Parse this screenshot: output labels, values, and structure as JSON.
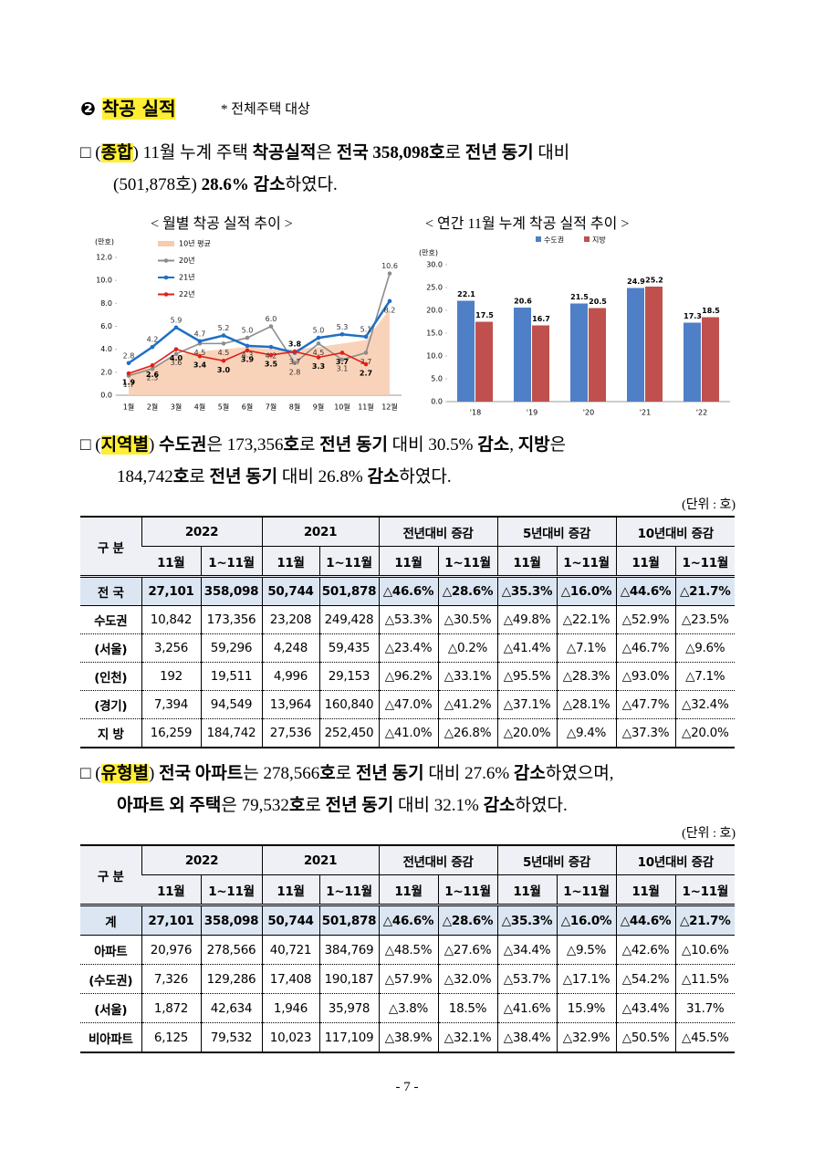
{
  "heading": {
    "number": "❷",
    "title": "착공 실적",
    "note": "* 전체주택 대상"
  },
  "paragraphs": [
    {
      "parts": [
        "□ (",
        "종합",
        ") 11월 누계 주택 ",
        "착공실적",
        "은 ",
        "전국 358,098호",
        "로 ",
        "전년 동기",
        " 대비",
        "(501,878호) ",
        "28.6% 감소",
        "하였다."
      ]
    },
    {
      "parts": [
        "□ (",
        "지역별",
        ") ",
        "수도권",
        "은 173,356",
        "호",
        "로 ",
        "전년 동기",
        " 대비 30.5% ",
        "감소",
        ", ",
        "지방",
        "은",
        "184,742",
        "호",
        "로 ",
        "전년 동기",
        " 대비 26.8% ",
        "감소",
        "하였다."
      ]
    },
    {
      "parts": [
        "□ (",
        "유형별",
        ") ",
        "전국 아파트",
        "는 278,566",
        "호",
        "로 ",
        "전년 동기",
        " 대비 27.6% ",
        "감소",
        "하였으며,",
        "아파트 외 주택",
        "은 79,532",
        "호",
        "로 ",
        "전년 동기",
        " 대비 32.1% ",
        "감소",
        "하였다."
      ]
    }
  ],
  "chart_data": [
    {
      "type": "line",
      "title": "< 월별 착공 실적 추이 >",
      "ylabel": "(만호)",
      "categories": [
        "1월",
        "2월",
        "3월",
        "4월",
        "5월",
        "6월",
        "7월",
        "8월",
        "9월",
        "10월",
        "11월",
        "12월"
      ],
      "ylim": [
        0,
        12
      ],
      "yticks": [
        {
          "value": 0,
          "label": "0.0"
        },
        {
          "value": 2,
          "label": "2.0"
        },
        {
          "value": 4,
          "label": "4.0"
        },
        {
          "value": 6,
          "label": "6.0"
        },
        {
          "value": 8,
          "label": "8.0"
        },
        {
          "value": 10,
          "label": "10.0"
        },
        {
          "value": 12,
          "label": "12.0"
        }
      ],
      "series": [
        {
          "name": "10년 평균",
          "type": "area",
          "color": "#f8cbad",
          "values": [
            2.0,
            2.5,
            3.5,
            3.8,
            4.0,
            4.2,
            4.0,
            4.0,
            4.2,
            4.5,
            4.8,
            7.5
          ]
        },
        {
          "name": "20년",
          "color": "#8c8c8c",
          "values": [
            1.7,
            2.3,
            3.6,
            4.5,
            4.5,
            5.0,
            6.0,
            2.8,
            4.5,
            3.1,
            3.7,
            10.6
          ],
          "value_labels": [
            "1.7",
            "2.3",
            "3.6",
            "4.5",
            "4.5",
            "5.0",
            "6.0",
            "2.8",
            "4.5",
            "3.1",
            "3.7",
            "10.6"
          ]
        },
        {
          "name": "21년",
          "color": "#1f6fc5",
          "values": [
            2.8,
            4.2,
            5.9,
            4.7,
            5.2,
            4.3,
            4.2,
            3.7,
            5.0,
            5.3,
            5.1,
            8.2
          ],
          "value_labels": [
            "2.8",
            "4.2",
            "5.9",
            "4.7",
            "5.2",
            "4.3",
            "4.2",
            "3.7",
            "5.0",
            "5.3",
            "5.1",
            "8.2"
          ]
        },
        {
          "name": "22년",
          "color": "#e0201b",
          "bold_labels": true,
          "values": [
            1.9,
            2.6,
            4.0,
            3.4,
            3.0,
            3.9,
            3.5,
            3.8,
            3.3,
            3.7,
            2.7,
            null
          ],
          "value_labels": [
            "1.9",
            "2.6",
            "4.0",
            "3.4",
            "3.0",
            "3.9",
            "3.5",
            "3.8",
            "3.3",
            "3.7",
            "2.7",
            null
          ]
        }
      ]
    },
    {
      "type": "bar",
      "title": "< 연간 11월 누계 착공 실적 추이 >",
      "ylabel": "(만호)",
      "categories": [
        "'18",
        "'19",
        "'20",
        "'21",
        "'22"
      ],
      "ylim": [
        0,
        30
      ],
      "yticks": [
        {
          "value": 0,
          "label": "0.0"
        },
        {
          "value": 5,
          "label": "5.0"
        },
        {
          "value": 10,
          "label": "10.0"
        },
        {
          "value": 15,
          "label": "15.0"
        },
        {
          "value": 20,
          "label": "20.0"
        },
        {
          "value": 25,
          "label": "25.0"
        },
        {
          "value": 30,
          "label": "30.0"
        }
      ],
      "series": [
        {
          "name": "수도권",
          "color": "#4f7fc6",
          "values": [
            22.1,
            20.6,
            21.5,
            24.9,
            17.3
          ]
        },
        {
          "name": "지방",
          "color": "#c0504d",
          "values": [
            17.5,
            16.7,
            20.5,
            25.2,
            18.5
          ]
        }
      ]
    }
  ],
  "tables": [
    {
      "unit": "(단위 : 호)",
      "header": [
        "구 분",
        "2022",
        "2021",
        "전년대비 증감",
        "5년대비 증감",
        "10년대비 증감"
      ],
      "subheader": [
        "11월",
        "1~11월",
        "11월",
        "1~11월",
        "11월",
        "1~11월",
        "11월",
        "1~11월",
        "11월",
        "1~11월"
      ],
      "rows": [
        [
          "전 국",
          "27,101",
          "358,098",
          "50,744",
          "501,878",
          "△46.6%",
          "△28.6%",
          "△35.3%",
          "△16.0%",
          "△44.6%",
          "△21.7%"
        ],
        [
          "수도권",
          "10,842",
          "173,356",
          "23,208",
          "249,428",
          "△53.3%",
          "△30.5%",
          "△49.8%",
          "△22.1%",
          "△52.9%",
          "△23.5%"
        ],
        [
          "(서울)",
          "3,256",
          "59,296",
          "4,248",
          "59,435",
          "△23.4%",
          "△0.2%",
          "△41.4%",
          "△7.1%",
          "△46.7%",
          "△9.6%"
        ],
        [
          "(인천)",
          "192",
          "19,511",
          "4,996",
          "29,153",
          "△96.2%",
          "△33.1%",
          "△95.5%",
          "△28.3%",
          "△93.0%",
          "△7.1%"
        ],
        [
          "(경기)",
          "7,394",
          "94,549",
          "13,964",
          "160,840",
          "△47.0%",
          "△41.2%",
          "△37.1%",
          "△28.1%",
          "△47.7%",
          "△32.4%"
        ],
        [
          "지 방",
          "16,259",
          "184,742",
          "27,536",
          "252,450",
          "△41.0%",
          "△26.8%",
          "△20.0%",
          "△9.4%",
          "△37.3%",
          "△20.0%"
        ]
      ]
    },
    {
      "unit": "(단위 : 호)",
      "header": [
        "구 분",
        "2022",
        "2021",
        "전년대비 증감",
        "5년대비 증감",
        "10년대비 증감"
      ],
      "subheader": [
        "11월",
        "1~11월",
        "11월",
        "1~11월",
        "11월",
        "1~11월",
        "11월",
        "1~11월",
        "11월",
        "1~11월"
      ],
      "rows": [
        [
          "계",
          "27,101",
          "358,098",
          "50,744",
          "501,878",
          "△46.6%",
          "△28.6%",
          "△35.3%",
          "△16.0%",
          "△44.6%",
          "△21.7%"
        ],
        [
          "아파트",
          "20,976",
          "278,566",
          "40,721",
          "384,769",
          "△48.5%",
          "△27.6%",
          "△34.4%",
          "△9.5%",
          "△42.6%",
          "△10.6%"
        ],
        [
          "(수도권)",
          "7,326",
          "129,286",
          "17,408",
          "190,187",
          "△57.9%",
          "△32.0%",
          "△53.7%",
          "△17.1%",
          "△54.2%",
          "△11.5%"
        ],
        [
          "(서울)",
          "1,872",
          "42,634",
          "1,946",
          "35,978",
          "△3.8%",
          "18.5%",
          "△41.6%",
          "15.9%",
          "△43.4%",
          "31.7%"
        ],
        [
          "비아파트",
          "6,125",
          "79,532",
          "10,023",
          "117,109",
          "△38.9%",
          "△32.1%",
          "△38.4%",
          "△32.9%",
          "△50.5%",
          "△45.5%"
        ]
      ]
    }
  ],
  "page_number": "- 7 -"
}
